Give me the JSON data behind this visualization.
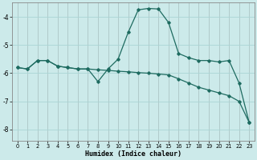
{
  "xlabel": "Humidex (Indice chaleur)",
  "background_color": "#cceaea",
  "grid_color": "#aad4d4",
  "line_color": "#1e6b60",
  "xlim": [
    -0.5,
    23.5
  ],
  "ylim": [
    -8.4,
    -3.5
  ],
  "yticks": [
    -8,
    -7,
    -6,
    -5,
    -4
  ],
  "xticks": [
    0,
    1,
    2,
    3,
    4,
    5,
    6,
    7,
    8,
    9,
    10,
    11,
    12,
    13,
    14,
    15,
    16,
    17,
    18,
    19,
    20,
    21,
    22,
    23
  ],
  "line1_x": [
    0,
    1,
    2,
    3,
    4,
    5,
    6,
    7,
    8,
    9,
    10,
    11,
    12,
    13,
    14,
    15,
    16,
    17,
    18,
    19,
    20,
    21,
    22,
    23
  ],
  "line1_y": [
    -5.8,
    -5.85,
    -5.55,
    -5.55,
    -5.75,
    -5.8,
    -5.85,
    -5.85,
    -6.3,
    -5.85,
    -5.5,
    -4.55,
    -3.75,
    -3.7,
    -3.72,
    -4.2,
    -5.3,
    -5.45,
    -5.55,
    -5.55,
    -5.6,
    -5.55,
    -6.35,
    -7.75
  ],
  "line2_x": [
    0,
    1,
    2,
    3,
    4,
    5,
    6,
    7,
    8,
    9,
    10,
    11,
    12,
    13,
    14,
    15,
    16,
    17,
    18,
    19,
    20,
    21,
    22,
    23
  ],
  "line2_y": [
    -5.8,
    -5.85,
    -5.55,
    -5.55,
    -5.75,
    -5.8,
    -5.85,
    -5.85,
    -5.88,
    -5.9,
    -5.93,
    -5.95,
    -5.98,
    -6.0,
    -6.03,
    -6.06,
    -6.2,
    -6.35,
    -6.5,
    -6.6,
    -6.7,
    -6.8,
    -7.0,
    -7.75
  ]
}
